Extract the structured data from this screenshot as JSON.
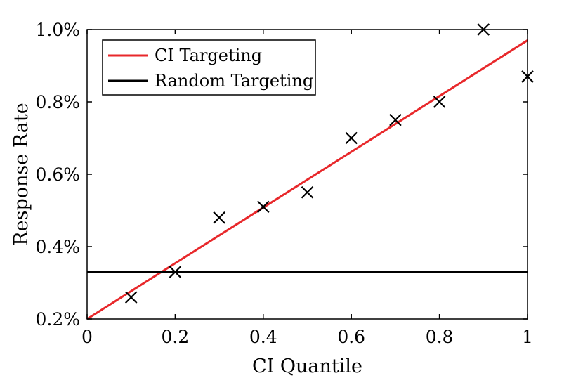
{
  "chart_data": {
    "type": "line",
    "xlabel": "CI Quantile",
    "ylabel": "Response Rate",
    "xlim": [
      0,
      1
    ],
    "ylim": [
      0.2,
      1.0
    ],
    "x_ticks": [
      0,
      0.2,
      0.4,
      0.6,
      0.8,
      1
    ],
    "x_tick_labels": [
      "0",
      "0.2",
      "0.4",
      "0.6",
      "0.8",
      "1"
    ],
    "y_ticks": [
      0.2,
      0.4,
      0.6,
      0.8,
      1.0
    ],
    "y_tick_labels": [
      "0.2%",
      "0.4%",
      "0.6%",
      "0.8%",
      "1.0%"
    ],
    "grid": false,
    "legend_position": "top-left",
    "series": [
      {
        "name": "CI Targeting",
        "kind": "line",
        "color": "#e8282b",
        "x": [
          0,
          1
        ],
        "y": [
          0.2,
          0.97
        ]
      },
      {
        "name": "Random Targeting",
        "kind": "line",
        "color": "#000000",
        "x": [
          0,
          1
        ],
        "y": [
          0.33,
          0.33
        ]
      }
    ],
    "points": {
      "marker": "x",
      "color": "#000000",
      "x": [
        0.1,
        0.2,
        0.3,
        0.4,
        0.5,
        0.6,
        0.7,
        0.8,
        0.9,
        1.0
      ],
      "y": [
        0.26,
        0.33,
        0.48,
        0.51,
        0.55,
        0.7,
        0.75,
        0.8,
        1.0,
        0.87
      ]
    }
  }
}
